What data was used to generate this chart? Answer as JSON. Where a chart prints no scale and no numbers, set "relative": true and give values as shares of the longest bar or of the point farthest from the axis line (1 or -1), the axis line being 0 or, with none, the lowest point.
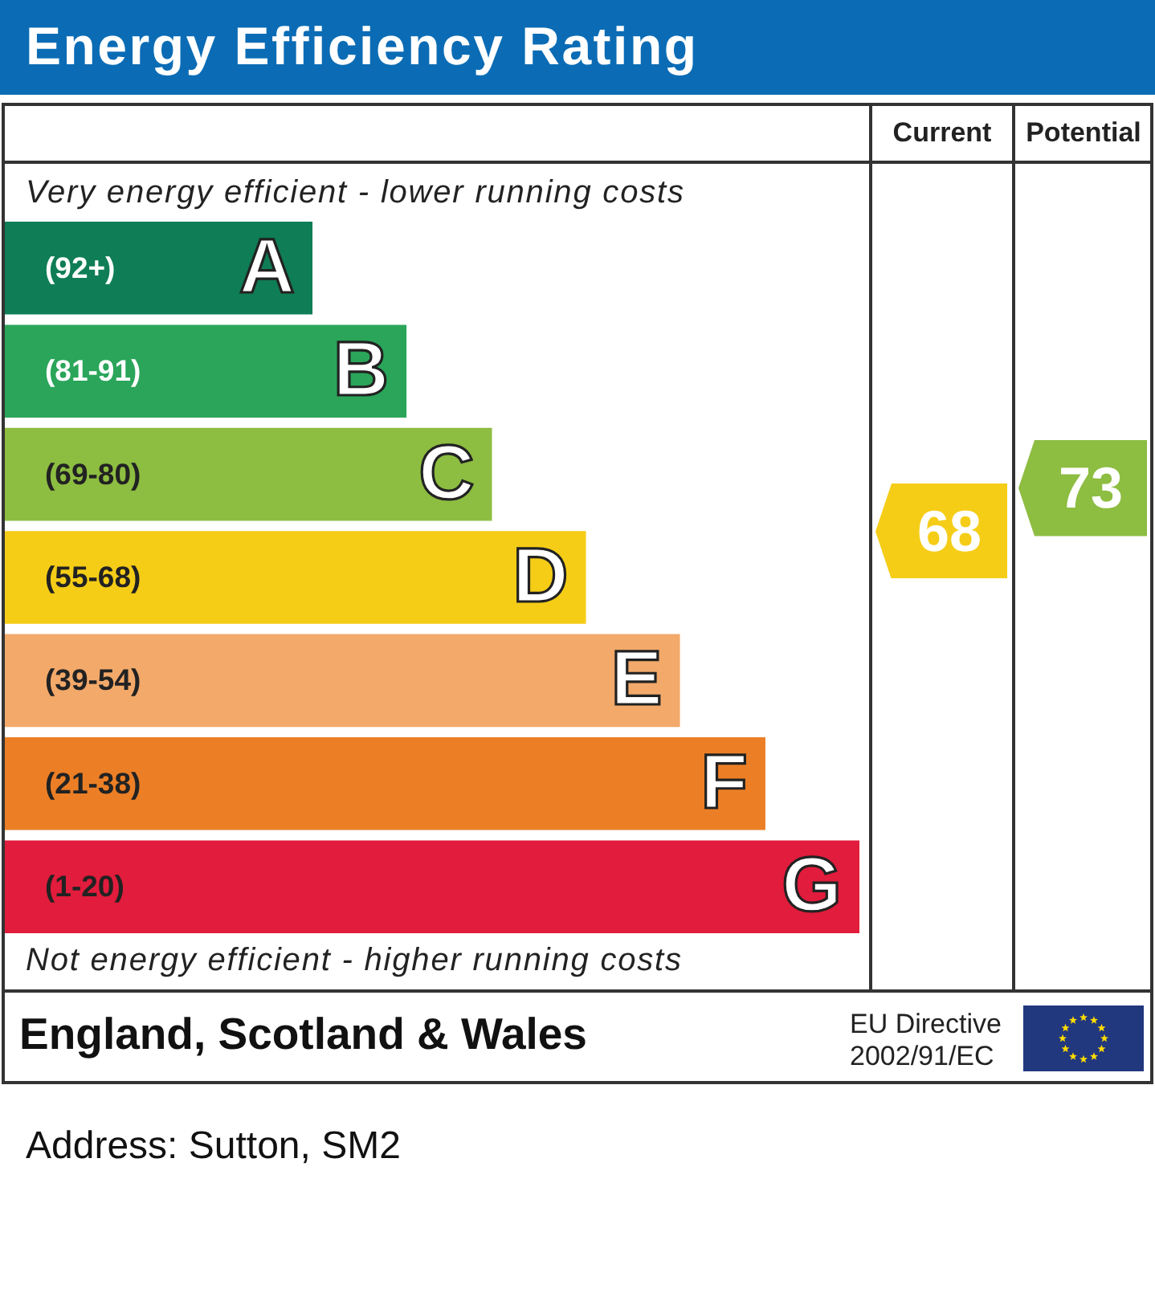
{
  "chart_data": {
    "type": "bar",
    "title": "Energy Efficiency Rating",
    "orientation": "horizontal",
    "relative": true,
    "categories": [
      "A",
      "B",
      "C",
      "D",
      "E",
      "F",
      "G"
    ],
    "values": [
      0.36,
      0.47,
      0.57,
      0.68,
      0.79,
      0.89,
      1
    ],
    "colors": [
      "#0f7d55",
      "#2aa55a",
      "#8dbd41",
      "#f5cd17",
      "#f2a96a",
      "#ec7f26",
      "#e11c3c"
    ],
    "annotations": [
      "Very energy efficient - lower running costs",
      "(92+)",
      "(81-91)",
      "(69-80)",
      "(55-68)",
      "(39-54)",
      "(21-38)",
      "(1-20)",
      "Not energy efficient - higher running costs",
      "Current",
      "68",
      "Potential",
      "73",
      "England, Scotland & Wales",
      "EU Directive",
      "2002/91/EC",
      "Address: Sutton, SM2"
    ]
  }
}
